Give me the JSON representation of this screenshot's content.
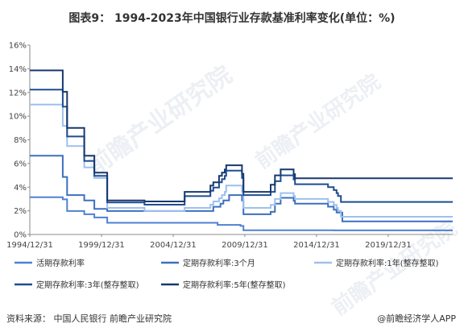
{
  "title": "图表9：  1994-2023年中国银行业存款基准利率变化(单位：%)",
  "source": "资料来源：  中国人民银行  前瞻产业研究院",
  "credit": "@前瞻经济学人APP",
  "watermark": "前瞻产业研究院",
  "colors": {
    "demand": "#4f81d4",
    "m3": "#3c70c0",
    "y1": "#9ec0ec",
    "y3": "#1f4d92",
    "y5": "#18386e"
  },
  "chart_data": {
    "type": "line",
    "title": "图表9：  1994-2023年中国银行业存款基准利率变化(单位：%)",
    "xlabel": "",
    "ylabel": "",
    "xlim": [
      1994,
      2023.5
    ],
    "ylim": [
      0,
      16
    ],
    "grid": false,
    "legend_position": "bottom",
    "y_ticks": [
      "0%",
      "2%",
      "4%",
      "6%",
      "8%",
      "10%",
      "12%",
      "14%",
      "16%"
    ],
    "x_ticks": [
      {
        "value": 1994.0,
        "label": "1994/12/31"
      },
      {
        "value": 1999.0,
        "label": "1999/12/31"
      },
      {
        "value": 2004.0,
        "label": "2004/12/31"
      },
      {
        "value": 2009.0,
        "label": "2009/12/31"
      },
      {
        "value": 2014.0,
        "label": "2014/12/31"
      },
      {
        "value": 2019.0,
        "label": "2019/12/31"
      }
    ],
    "series": [
      {
        "name": "活期存款利率",
        "color_key": "demand",
        "x": [
          1994.0,
          1996.3,
          1996.3,
          1996.6,
          1996.6,
          1997.8,
          1997.8,
          1998.5,
          1998.5,
          1999.4,
          1999.4,
          2007.1,
          2007.1,
          2008.7,
          2008.7,
          2008.9,
          2008.9,
          2015.2,
          2015.2,
          2023.5
        ],
        "y": [
          3.15,
          3.15,
          2.97,
          2.97,
          1.98,
          1.98,
          1.71,
          1.71,
          1.44,
          1.44,
          0.99,
          0.99,
          0.81,
          0.81,
          0.72,
          0.72,
          0.36,
          0.36,
          0.35,
          0.35
        ]
      },
      {
        "name": "定期存款利率:3个月",
        "color_key": "m3",
        "x": [
          1994.0,
          1996.3,
          1996.3,
          1996.6,
          1996.6,
          1997.8,
          1997.8,
          1998.5,
          1998.5,
          1999.4,
          1999.4,
          2006.8,
          2006.8,
          2007.3,
          2007.3,
          2007.5,
          2007.5,
          2007.9,
          2007.9,
          2008.8,
          2008.8,
          2008.9,
          2008.9,
          2010.8,
          2010.8,
          2011.1,
          2011.1,
          2011.5,
          2011.5,
          2012.4,
          2012.4,
          2012.5,
          2012.5,
          2014.8,
          2014.8,
          2015.2,
          2015.2,
          2015.4,
          2015.4,
          2015.8,
          2015.8,
          2023.5
        ],
        "y": [
          6.66,
          6.66,
          4.86,
          4.86,
          3.33,
          3.33,
          2.88,
          2.88,
          2.16,
          2.16,
          1.98,
          1.98,
          2.34,
          2.34,
          2.61,
          2.61,
          2.88,
          2.88,
          3.33,
          3.33,
          2.88,
          2.88,
          1.71,
          1.71,
          1.91,
          1.91,
          2.6,
          2.6,
          3.1,
          3.1,
          2.85,
          2.85,
          2.6,
          2.6,
          2.35,
          2.35,
          2.1,
          2.1,
          1.85,
          1.85,
          1.1,
          1.1
        ]
      },
      {
        "name": "定期存款利率:1年(整存整取)",
        "color_key": "y1",
        "x": [
          1994.0,
          1996.3,
          1996.3,
          1996.6,
          1996.6,
          1997.8,
          1997.8,
          1998.5,
          1998.5,
          1999.4,
          1999.4,
          2002.0,
          2002.0,
          2004.8,
          2004.8,
          2006.6,
          2006.6,
          2006.8,
          2006.8,
          2007.2,
          2007.2,
          2007.4,
          2007.4,
          2007.6,
          2007.6,
          2007.7,
          2007.7,
          2008.8,
          2008.8,
          2008.9,
          2008.9,
          2010.8,
          2010.8,
          2011.1,
          2011.1,
          2011.5,
          2011.5,
          2012.4,
          2012.4,
          2012.5,
          2012.5,
          2014.8,
          2014.8,
          2015.2,
          2015.2,
          2015.4,
          2015.4,
          2015.5,
          2015.5,
          2015.7,
          2015.7,
          2023.5
        ],
        "y": [
          10.98,
          10.98,
          9.18,
          9.18,
          7.47,
          7.47,
          5.67,
          5.67,
          4.77,
          4.77,
          2.25,
          2.25,
          1.98,
          1.98,
          2.25,
          2.25,
          2.52,
          2.52,
          2.79,
          2.79,
          3.06,
          3.06,
          3.33,
          3.33,
          3.6,
          3.6,
          4.14,
          4.14,
          3.6,
          3.6,
          2.25,
          2.25,
          2.5,
          2.5,
          3.0,
          3.0,
          3.5,
          3.5,
          3.25,
          3.25,
          3.0,
          3.0,
          2.75,
          2.75,
          2.5,
          2.5,
          2.25,
          2.25,
          2.0,
          2.0,
          1.5,
          1.5
        ]
      },
      {
        "name": "定期存款利率:3年(整存整取)",
        "color_key": "y3",
        "x": [
          1994.0,
          1996.3,
          1996.3,
          1996.6,
          1996.6,
          1997.8,
          1997.8,
          1998.5,
          1998.5,
          1999.4,
          1999.4,
          2002.0,
          2002.0,
          2004.8,
          2004.8,
          2006.6,
          2006.6,
          2006.8,
          2006.8,
          2007.2,
          2007.2,
          2007.4,
          2007.4,
          2007.6,
          2007.6,
          2007.7,
          2007.7,
          2008.8,
          2008.8,
          2008.9,
          2008.9,
          2010.8,
          2010.8,
          2011.1,
          2011.1,
          2011.5,
          2011.5,
          2012.4,
          2012.4,
          2012.5,
          2012.5,
          2014.8,
          2014.8,
          2015.2,
          2015.2,
          2015.4,
          2015.4,
          2015.5,
          2015.5,
          2015.7,
          2015.7,
          2023.5
        ],
        "y": [
          12.24,
          12.24,
          10.8,
          10.8,
          8.28,
          8.28,
          6.21,
          6.21,
          4.95,
          4.95,
          2.7,
          2.7,
          2.52,
          2.52,
          3.24,
          3.24,
          3.69,
          3.69,
          3.96,
          3.96,
          4.41,
          4.41,
          4.68,
          4.68,
          4.95,
          4.95,
          5.4,
          5.4,
          4.77,
          4.77,
          3.33,
          3.33,
          3.6,
          3.6,
          4.5,
          4.5,
          5.0,
          5.0,
          4.65,
          4.65,
          4.25,
          4.25,
          4.0,
          4.0,
          3.75,
          3.75,
          3.5,
          3.5,
          3.25,
          3.25,
          2.75,
          2.75
        ]
      },
      {
        "name": "定期存款利率:5年(整存整取)",
        "color_key": "y5",
        "x": [
          1994.0,
          1996.3,
          1996.3,
          1996.6,
          1996.6,
          1997.8,
          1997.8,
          1998.5,
          1998.5,
          1999.4,
          1999.4,
          2002.0,
          2002.0,
          2004.8,
          2004.8,
          2006.6,
          2006.6,
          2006.8,
          2006.8,
          2007.2,
          2007.2,
          2007.4,
          2007.4,
          2007.6,
          2007.6,
          2007.7,
          2007.7,
          2008.8,
          2008.8,
          2008.9,
          2008.9,
          2010.8,
          2010.8,
          2011.1,
          2011.1,
          2011.5,
          2011.5,
          2012.4,
          2012.4,
          2012.5,
          2012.5,
          2014.8,
          2014.8,
          2023.5
        ],
        "y": [
          13.86,
          13.86,
          12.06,
          12.06,
          9.0,
          9.0,
          6.66,
          6.66,
          5.22,
          5.22,
          2.88,
          2.88,
          2.79,
          2.79,
          3.6,
          3.6,
          4.14,
          4.14,
          4.41,
          4.41,
          4.95,
          4.95,
          5.22,
          5.22,
          5.49,
          5.49,
          5.85,
          5.85,
          5.13,
          5.13,
          3.6,
          3.6,
          4.2,
          4.2,
          5.0,
          5.0,
          5.5,
          5.5,
          5.1,
          5.1,
          4.75,
          4.75,
          4.75,
          4.75
        ]
      }
    ]
  }
}
